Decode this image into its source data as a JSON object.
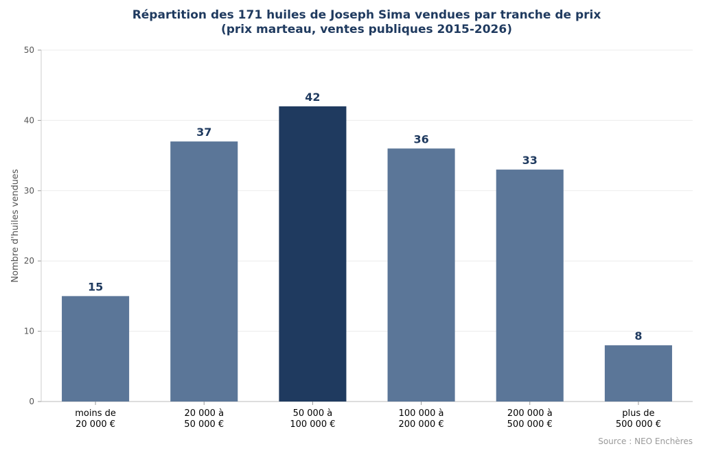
{
  "chart_data": {
    "type": "bar",
    "title_line1": "Répartition des 171 huiles de Joseph Sima vendues par tranche de prix",
    "title_line2": "(prix marteau, ventes publiques 2015-2026)",
    "xlabel": "",
    "ylabel": "Nombre d'huiles vendues",
    "categories": [
      [
        "moins de",
        "20 000 €"
      ],
      [
        "20 000 à",
        "50 000 €"
      ],
      [
        "50 000 à",
        "100 000 €"
      ],
      [
        "100 000 à",
        "200 000 €"
      ],
      [
        "200 000 à",
        "500 000 €"
      ],
      [
        "plus de",
        "500 000 €"
      ]
    ],
    "values": [
      15,
      37,
      42,
      36,
      33,
      8
    ],
    "highlight_index": 2,
    "ylim": [
      0,
      50
    ],
    "yticks": [
      0,
      10,
      20,
      30,
      40,
      50
    ],
    "grid": true,
    "colors": {
      "bar": "#5b7698",
      "highlight": "#1f3a5f",
      "label": "#1f3a5f"
    }
  },
  "source": "Source : NEO Enchères"
}
